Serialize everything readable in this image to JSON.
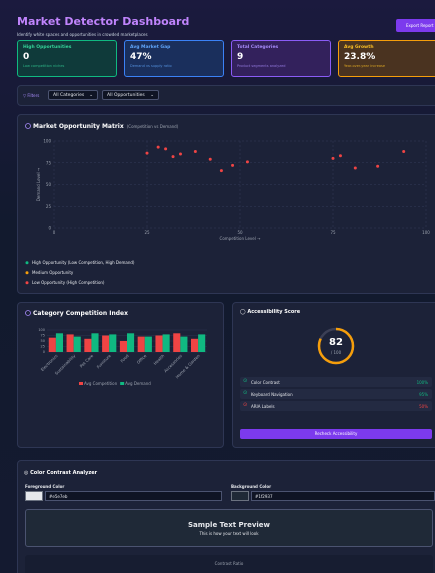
{
  "header": {
    "title": "Market Detector Dashboard",
    "subtitle": "Identify white spaces and opportunities in crowded marketplaces",
    "button": "Export Report"
  },
  "stats": [
    {
      "label": "High Opportunities",
      "value": "0",
      "note": "Low competition niches"
    },
    {
      "label": "Avg Market Gap",
      "value": "47%",
      "note": "Demand vs supply ratio"
    },
    {
      "label": "Total Categories",
      "value": "9",
      "note": "Product segments analyzed"
    },
    {
      "label": "Avg Growth",
      "value": "23.8%",
      "note": "Year-over-year increase"
    }
  ],
  "filters": {
    "label": "Filters",
    "options": [
      "All Categories",
      "All Opportunities"
    ]
  },
  "chart_data": [
    {
      "type": "scatter",
      "title": "Market Opportunity Matrix",
      "subtitle": "(Competition vs Demand)",
      "x_label": "Competition Level →",
      "y_label": "Demand Level →",
      "x": [
        25,
        28,
        30,
        32,
        34,
        38,
        42,
        45,
        48,
        52,
        75,
        77,
        81,
        87,
        94
      ],
      "values": [
        86,
        93,
        91,
        82,
        85,
        88,
        79,
        66,
        72,
        76,
        80,
        83,
        69,
        71,
        88
      ],
      "color": "#ef4444",
      "xlim": [
        0,
        100
      ],
      "ylim": [
        0,
        100
      ],
      "xticks": [
        0,
        25,
        50,
        75,
        100
      ],
      "yticks": [
        0,
        25,
        50,
        75,
        100
      ],
      "grid": true,
      "legend": [
        {
          "name": "High Opportunity (Low Competition, High Demand)",
          "color": "#10b981"
        },
        {
          "name": "Medium Opportunity",
          "color": "#f59e0b"
        },
        {
          "name": "Low Opportunity (High Competition)",
          "color": "#ef4444"
        }
      ]
    },
    {
      "type": "bar",
      "title": "Category Competition Index",
      "categories": [
        "Electronics",
        "Sustainability",
        "Pet Care",
        "Furniture",
        "Food",
        "Office",
        "Health",
        "Accessories",
        "Home & Garden"
      ],
      "series": [
        {
          "name": "Avg Competition",
          "color": "#ef4444",
          "values": [
            65,
            80,
            60,
            75,
            50,
            70,
            75,
            85,
            60
          ]
        },
        {
          "name": "Avg Demand",
          "color": "#10b981",
          "values": [
            85,
            70,
            85,
            80,
            85,
            70,
            80,
            70,
            80
          ]
        }
      ],
      "ylim": [
        0,
        100
      ],
      "yticks": [
        0,
        25,
        50,
        75,
        100
      ]
    }
  ],
  "accessibility": {
    "title": "Accessibility Score",
    "score": 82,
    "score_suffix": "/ 100",
    "max": 100,
    "rows": [
      {
        "label": "Color Contrast",
        "value": "100%"
      },
      {
        "label": "Keyboard Navigation",
        "value": "95%"
      },
      {
        "label": "ARIA Labels",
        "value": "50%"
      }
    ],
    "button": "Recheck Accessibility"
  },
  "contrast": {
    "title": "Color Contrast Analyzer",
    "foreground_label": "Foreground Color",
    "foreground": "#e5e7eb",
    "background_label": "Background Color",
    "background": "#1f2937",
    "preview_title": "Sample Text Preview",
    "preview_text": "This is how your text will look",
    "ratio_label": "Contrast Ratio"
  }
}
